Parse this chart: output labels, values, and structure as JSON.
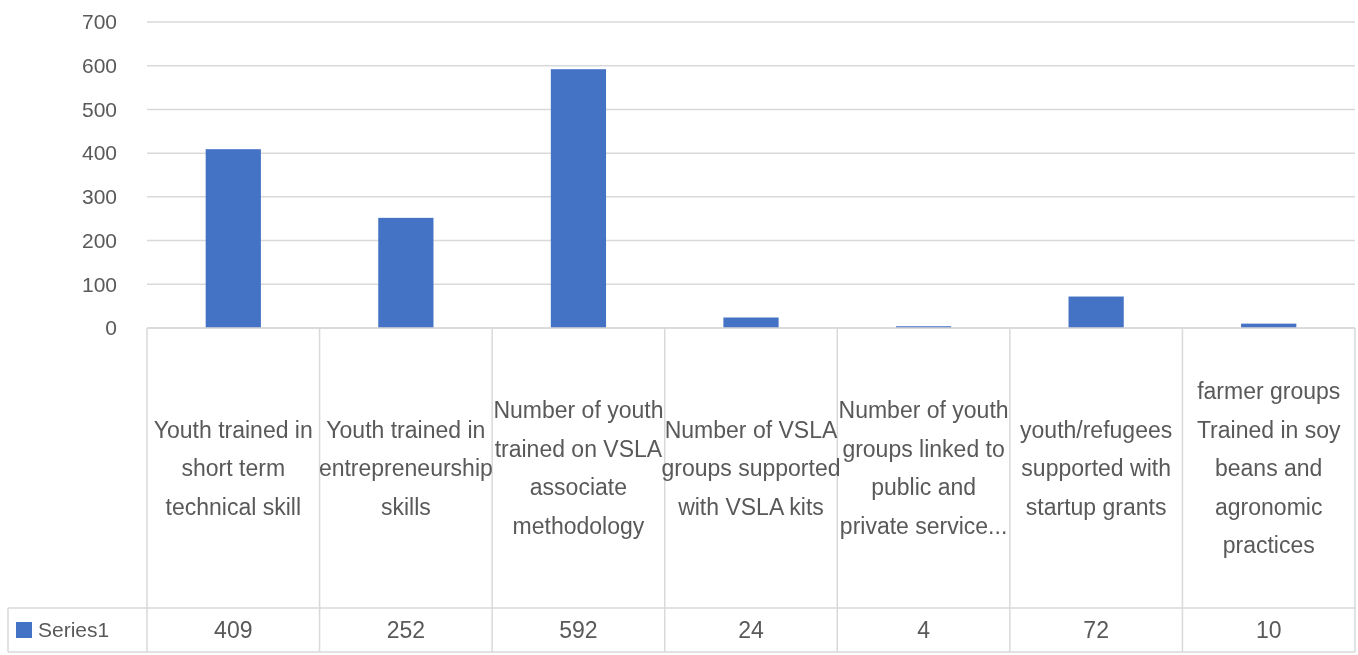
{
  "chart_data": {
    "type": "bar",
    "categories": [
      "Youth trained in short term technical skill",
      "Youth trained in entrepreneurship skills",
      "Number of youth trained on VSLA associate methodology",
      "Number of VSLA groups supported with VSLA kits",
      "Number of youth groups linked to public and private service...",
      "youth/refugees supported with startup grants",
      "farmer groups Trained in soy beans and agronomic practices"
    ],
    "series": [
      {
        "name": "Series1",
        "color": "#4472c4",
        "values": [
          409,
          252,
          592,
          24,
          4,
          72,
          10
        ]
      }
    ],
    "ylim": [
      0,
      700
    ],
    "yticks": [
      0,
      100,
      200,
      300,
      400,
      500,
      600,
      700
    ],
    "grid": "y",
    "data_labels": true,
    "legend": "bottom left"
  }
}
